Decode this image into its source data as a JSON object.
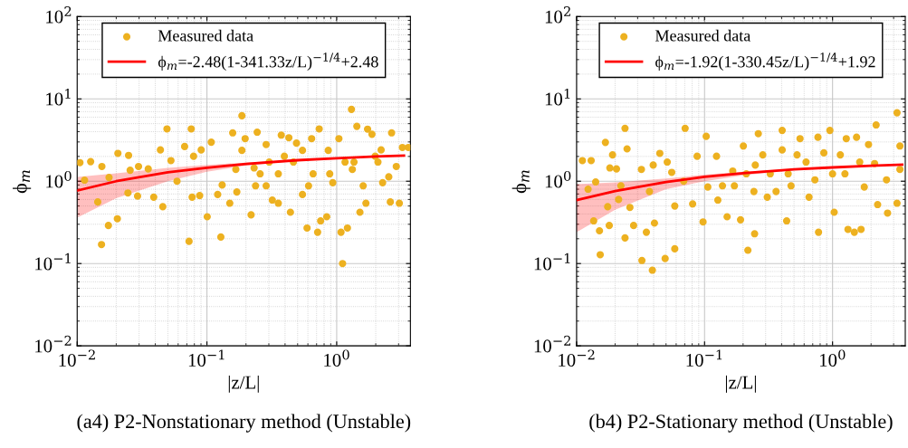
{
  "chart_data": [
    {
      "type": "scatter",
      "xlabel": "|z/L|",
      "ylabel": "ϕ$_{m}$",
      "annotations": [
        "(a4) P2-Nonstationary method (Unstable)"
      ],
      "xlim": [
        0.01,
        3.7
      ],
      "ylim": [
        0.01,
        100
      ],
      "log": "xy",
      "grid": true,
      "legend": "top",
      "xticks": [
        {
          "value": 0.01,
          "label": "10$^{−2}$"
        },
        {
          "value": 0.1,
          "label": "10$^{−1}$"
        },
        {
          "value": 1,
          "label": "10$^{0}$"
        }
      ],
      "yticks": [
        {
          "value": 0.01,
          "label": "10$^{−2}$"
        },
        {
          "value": 0.1,
          "label": "10$^{−1}$"
        },
        {
          "value": 1,
          "label": "10$^{0}$"
        },
        {
          "value": 10,
          "label": "10$^{1}$"
        },
        {
          "value": 100,
          "label": "10$^{2}$"
        }
      ],
      "series": [
        {
          "name": "Measured data",
          "marker": "circle",
          "color": "#edb120",
          "x": [
            0.0105,
            0.0127,
            0.0114,
            0.0155,
            0.0176,
            0.0144,
            0.0174,
            0.0154,
            0.0204,
            0.0206,
            0.0249,
            0.0256,
            0.0297,
            0.0292,
            0.0246,
            0.0353,
            0.0389,
            0.0457,
            0.0438,
            0.0492,
            0.0528,
            0.0588,
            0.0673,
            0.0757,
            0.0728,
            0.0789,
            0.0769,
            0.0903,
            0.0879,
            0.1005,
            0.108,
            0.128,
            0.121,
            0.131,
            0.15,
            0.158,
            0.167,
            0.186,
            0.17,
            0.197,
            0.219,
            0.244,
            0.237,
            0.286,
            0.319,
            0.374,
            0.428,
            0.44,
            0.545,
            0.591,
            0.641,
            0.713,
            0.752,
            0.733,
            0.861,
            0.933,
            1.08,
            1.11,
            1.21,
            1.3,
            1.32,
            1.43,
            1.51,
            1.68,
            1.87,
            1.98,
            2.26,
            2.52,
            2.59,
            2.65,
            3.04,
            3.57,
            3.21,
            2.88,
            0.231,
            0.302,
            0.464,
            0.884,
            1.36,
            2.08,
            0.395,
            0.49,
            0.658,
            1.04,
            1.73,
            2.2,
            0.355,
            0.838,
            1.6,
            0.257,
            0.186,
            0.355,
            0.545,
            1.16,
            0.286,
            0.607
          ],
          "values": [
            1.68,
            1.73,
            1.03,
            1.51,
            1.11,
            0.56,
            0.29,
            0.17,
            0.35,
            2.18,
            2.06,
            1.36,
            1.51,
            0.66,
            0.72,
            1.41,
            0.64,
            0.49,
            2.4,
            4.32,
            1.78,
            1.0,
            2.64,
            4.32,
            0.186,
            2.01,
            0.64,
            2.4,
            0.67,
            0.37,
            2.98,
            0.21,
            0.69,
            0.9,
            0.54,
            3.87,
            1.39,
            6.24,
            0.74,
            3.29,
            0.39,
            3.94,
            0.88,
            2.79,
            0.59,
            3.63,
            3.37,
            0.42,
            0.69,
            0.27,
            3.29,
            0.24,
            0.33,
            4.32,
            2.37,
            0.96,
            0.24,
            0.1,
            0.27,
            7.46,
            1.39,
            4.64,
            0.42,
            0.54,
            3.72,
            2.01,
            0.96,
            1.13,
            0.56,
            3.87,
            0.54,
            2.57,
            2.57,
            1.51,
            1.45,
            1.71,
            1.71,
            1.23,
            1.71,
            1.71,
            2.01,
            2.9,
            1.23,
            3.29,
            4.29,
            2.4,
            0.54,
            0.37,
            0.88,
            1.23,
            2.37,
            1.23,
            2.37,
            1.71,
            0.88,
            0.88
          ]
        },
        {
          "name": "ϕ$_{m}$=-2.48(1-341.33z/L)$^{−1/4}$+2.48",
          "type": "line",
          "line_style": "solid",
          "color": "#ff0000",
          "x": [
            0.01,
            0.02,
            0.05,
            0.1,
            0.2,
            0.5,
            1,
            2,
            3.3
          ],
          "values": [
            0.77,
            1.0,
            1.28,
            1.46,
            1.62,
            1.8,
            1.9,
            2.0,
            2.05
          ],
          "lower": [
            0.36,
            0.62,
            1.0,
            1.3,
            1.55,
            1.77,
            1.89,
            1.99,
            2.05
          ],
          "upper": [
            1.13,
            1.25,
            1.45,
            1.58,
            1.68,
            1.82,
            1.92,
            2.0,
            2.06
          ]
        }
      ]
    },
    {
      "type": "scatter",
      "xlabel": "|z/L|",
      "ylabel": "ϕ$_{m}$",
      "annotations": [
        "(b4) P2-Stationary method (Unstable)"
      ],
      "xlim": [
        0.01,
        3.7
      ],
      "ylim": [
        0.01,
        100
      ],
      "log": "xy",
      "grid": true,
      "legend": "top",
      "xticks": [
        {
          "value": 0.01,
          "label": "10$^{−2}$"
        },
        {
          "value": 0.1,
          "label": "10$^{−1}$"
        },
        {
          "value": 1,
          "label": "10$^{0}$"
        }
      ],
      "yticks": [
        {
          "value": 0.01,
          "label": "10$^{−2}$"
        },
        {
          "value": 0.1,
          "label": "10$^{−1}$"
        },
        {
          "value": 1,
          "label": "10$^{0}$"
        },
        {
          "value": 10,
          "label": "10$^{1}$"
        },
        {
          "value": 100,
          "label": "10$^{2}$"
        }
      ],
      "series": [
        {
          "name": "Measured data",
          "marker": "circle",
          "color": "#edb120",
          "x": [
            0.0111,
            0.013,
            0.0123,
            0.0141,
            0.0136,
            0.0151,
            0.0153,
            0.0168,
            0.0175,
            0.018,
            0.0182,
            0.0191,
            0.0205,
            0.0213,
            0.0222,
            0.0239,
            0.0239,
            0.0248,
            0.0261,
            0.0279,
            0.0321,
            0.0324,
            0.0351,
            0.0371,
            0.0391,
            0.0397,
            0.0406,
            0.0447,
            0.0492,
            0.0511,
            0.0554,
            0.0585,
            0.0585,
            0.0687,
            0.0705,
            0.0807,
            0.0875,
            0.0973,
            0.103,
            0.106,
            0.124,
            0.127,
            0.138,
            0.15,
            0.166,
            0.191,
            0.201,
            0.218,
            0.243,
            0.246,
            0.263,
            0.285,
            0.309,
            0.404,
            0.404,
            0.438,
            0.474,
            0.528,
            0.557,
            0.655,
            0.769,
            0.777,
            0.855,
            0.953,
            1.0,
            1.03,
            1.15,
            1.28,
            1.32,
            1.48,
            1.54,
            1.67,
            1.77,
            1.91,
            2.19,
            2.25,
            2.13,
            2.64,
            2.69,
            3.19,
            3.19,
            3.36,
            3.36,
            0.171,
            0.326,
            0.249,
            0.45,
            0.728,
            1.25,
            0.362,
            0.621,
            0.212,
            1.63
          ],
          "values": [
            1.78,
            1.78,
            0.8,
            0.98,
            0.33,
            0.25,
            0.128,
            2.96,
            0.49,
            0.29,
            1.45,
            2.09,
            1.41,
            0.6,
            0.88,
            4.39,
            0.205,
            2.47,
            0.48,
            0.29,
            1.39,
            0.109,
            0.24,
            0.75,
            0.083,
            1.57,
            0.31,
            2.18,
            0.115,
            1.71,
            1.28,
            0.151,
            0.5,
            1.0,
            4.39,
            0.53,
            2.01,
            0.32,
            3.51,
            0.85,
            2.01,
            0.59,
            0.88,
            0.37,
            1.33,
            0.34,
            2.68,
            0.145,
            0.75,
            0.23,
            3.78,
            2.09,
            0.64,
            4.14,
            2.4,
            0.33,
            0.88,
            2.09,
            3.29,
            0.64,
            3.42,
            0.24,
            2.21,
            4.14,
            1.23,
            0.42,
            2.09,
            3.29,
            0.26,
            0.24,
            3.42,
            0.26,
            0.85,
            2.79,
            4.83,
            0.52,
            1.64,
            1.04,
            0.41,
            6.78,
            0.54,
            2.68,
            1.39,
            0.88,
            1.23,
            1.57,
            1.23,
            1.04,
            1.23,
            0.75,
            1.71,
            1.23,
            1.71
          ]
        },
        {
          "name": "ϕ$_{m}$=-1.92(1-330.45z/L)$^{−1/4}$+1.92",
          "type": "line",
          "line_style": "solid",
          "color": "#ff0000",
          "x": [
            0.01,
            0.02,
            0.05,
            0.1,
            0.2,
            0.5,
            1,
            2,
            3.5
          ],
          "values": [
            0.59,
            0.76,
            0.98,
            1.13,
            1.25,
            1.39,
            1.47,
            1.54,
            1.59
          ],
          "lower": [
            0.24,
            0.45,
            0.8,
            1.0,
            1.18,
            1.36,
            1.46,
            1.54,
            1.59
          ],
          "upper": [
            0.92,
            0.97,
            1.08,
            1.2,
            1.3,
            1.41,
            1.48,
            1.55,
            1.6
          ]
        }
      ]
    }
  ]
}
